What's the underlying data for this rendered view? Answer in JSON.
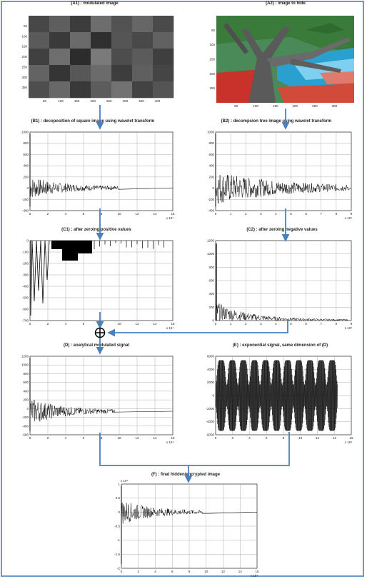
{
  "colors": {
    "frame": "#6e98c6",
    "arrow": "#4a80c0",
    "signal": "#000000",
    "grid": "#9a9a9a"
  },
  "panels": {
    "a1": {
      "title": "(A1) : modulated image",
      "yticks": [
        "50",
        "100",
        "150",
        "200",
        "250",
        "300",
        "350"
      ],
      "xticks": [
        "50",
        "100",
        "150",
        "200",
        "250",
        "300",
        "350",
        "400"
      ]
    },
    "a2": {
      "title": "(A2) : image to hide",
      "yticks": [
        "50",
        "100",
        "150",
        "200",
        "250"
      ],
      "xticks": [
        "50",
        "100",
        "150",
        "200",
        "250",
        "300"
      ]
    },
    "b1": {
      "title": "(B1) : decoposition of square image using wavelet transform",
      "yticks": [
        "1000",
        "800",
        "600",
        "400",
        "200",
        "0",
        "-200",
        "-400"
      ],
      "xticks": [
        "0",
        "2",
        "4",
        "6",
        "8",
        "10",
        "12",
        "14",
        "16"
      ],
      "exp": "x 10⁴"
    },
    "b2": {
      "title": "(B2) : decompsion tree image using wavelet transform",
      "yticks": [
        "1000",
        "800",
        "600",
        "400",
        "200",
        "0",
        "-200",
        "-400"
      ],
      "xticks": [
        "0",
        "1",
        "2",
        "3",
        "4",
        "5",
        "6",
        "7",
        "8",
        "9"
      ],
      "exp": "x 10⁴"
    },
    "c1": {
      "title": "(C1) : after zeroing positive values",
      "yticks": [
        "0",
        "-100",
        "-200",
        "-300",
        "-400",
        "-500",
        "-600",
        "-700"
      ],
      "xticks": [
        "0",
        "2",
        "4",
        "6",
        "8",
        "10",
        "12",
        "14",
        "16"
      ],
      "exp": "x 10⁴"
    },
    "c2": {
      "title": "(C2) : after zeroing negative values",
      "yticks": [
        "1200",
        "1000",
        "800",
        "600",
        "400",
        "200",
        "0"
      ],
      "xticks": [
        "0",
        "1",
        "2",
        "3",
        "4",
        "5",
        "6",
        "7",
        "8",
        "9"
      ],
      "exp": "x 10⁴"
    },
    "d": {
      "title": "(D) : analytical modulated signal",
      "yticks": [
        "1200",
        "1000",
        "800",
        "600",
        "400",
        "200",
        "0",
        "-200",
        "-400",
        "-600"
      ],
      "xticks": [
        "0",
        "2",
        "4",
        "6",
        "8",
        "10",
        "12",
        "14",
        "16"
      ],
      "exp": "x 10⁴"
    },
    "e": {
      "title": "(E) : exponential signal, same dimension of (D)",
      "yticks": [
        "6000",
        "4000",
        "2000",
        "0",
        "-2000",
        "-4000",
        "-6000"
      ],
      "xticks": [
        "0",
        "2",
        "4",
        "6",
        "8",
        "10",
        "12",
        "14",
        "16"
      ],
      "exp": "x 10⁴"
    },
    "f": {
      "title": "(F) : final hidden/encrypted image",
      "yticks": [
        "1",
        "0.5",
        "0",
        "-0.5",
        "-1",
        "-1.5",
        "-2"
      ],
      "ytop": "x 10⁴",
      "xticks": [
        "0",
        "2",
        "4",
        "6",
        "8",
        "10",
        "12",
        "14",
        "16"
      ],
      "exp": "x 10⁴"
    }
  },
  "operator_symbol": "⊕"
}
